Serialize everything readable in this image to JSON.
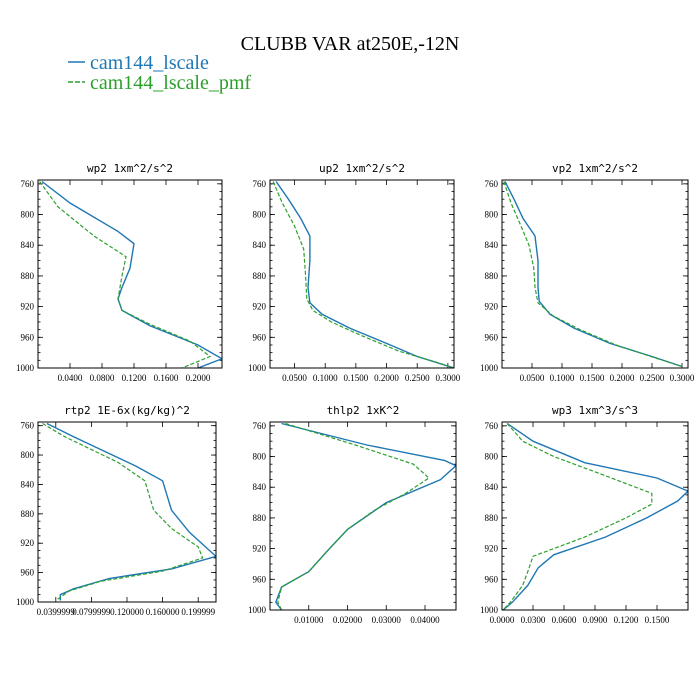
{
  "title": "CLUBB VAR at250E,-12N",
  "colors": {
    "cam144_lscale": "#1f77b4",
    "cam144_lscale_pmf": "#2ca02c"
  },
  "legend": [
    {
      "name": "cam144_lscale",
      "color": "#1f77b4",
      "dash": "solid"
    },
    {
      "name": "cam144_lscale_pmf",
      "color": "#2ca02c",
      "dash": "dashed"
    }
  ],
  "chart_data": [
    {
      "type": "line",
      "title": "wp2  1xm^2/s^2",
      "ylim": [
        1000,
        755
      ],
      "xlim": [
        0,
        0.23
      ],
      "yticks": [
        "760",
        "800",
        "840",
        "880",
        "920",
        "960",
        "1000"
      ],
      "xticks": [
        "0.0400",
        "0.0800",
        "0.1200",
        "0.1600",
        "0.2000"
      ],
      "series": [
        {
          "name": "cam144_lscale",
          "points": [
            [
              0.005,
              757
            ],
            [
              0.04,
              785
            ],
            [
              0.1,
              822
            ],
            [
              0.12,
              838
            ],
            [
              0.115,
              870
            ],
            [
              0.105,
              895
            ],
            [
              0.1,
              910
            ],
            [
              0.105,
              925
            ],
            [
              0.14,
              945
            ],
            [
              0.2,
              970
            ],
            [
              0.23,
              988
            ],
            [
              0.2,
              1000
            ]
          ]
        },
        {
          "name": "cam144_lscale_pmf",
          "points": [
            [
              0.002,
              757
            ],
            [
              0.025,
              790
            ],
            [
              0.07,
              828
            ],
            [
              0.11,
              855
            ],
            [
              0.105,
              880
            ],
            [
              0.1,
              910
            ],
            [
              0.105,
              925
            ],
            [
              0.14,
              943
            ],
            [
              0.19,
              965
            ],
            [
              0.215,
              985
            ],
            [
              0.18,
              1000
            ]
          ]
        }
      ]
    },
    {
      "type": "line",
      "title": "up2  1xm^2/s^2",
      "ylim": [
        1000,
        755
      ],
      "xlim": [
        0.01,
        0.31
      ],
      "yticks": [
        "760",
        "800",
        "840",
        "880",
        "920",
        "960",
        "1000"
      ],
      "xticks": [
        "0.0500",
        "0.1000",
        "0.1500",
        "0.2000",
        "0.2500",
        "0.3000"
      ],
      "series": [
        {
          "name": "cam144_lscale",
          "points": [
            [
              0.02,
              757
            ],
            [
              0.04,
              780
            ],
            [
              0.06,
              805
            ],
            [
              0.075,
              828
            ],
            [
              0.075,
              860
            ],
            [
              0.072,
              895
            ],
            [
              0.075,
              915
            ],
            [
              0.095,
              930
            ],
            [
              0.14,
              948
            ],
            [
              0.2,
              968
            ],
            [
              0.25,
              985
            ],
            [
              0.31,
              1000
            ]
          ]
        },
        {
          "name": "cam144_lscale_pmf",
          "points": [
            [
              0.015,
              757
            ],
            [
              0.03,
              785
            ],
            [
              0.05,
              815
            ],
            [
              0.065,
              845
            ],
            [
              0.068,
              880
            ],
            [
              0.07,
              910
            ],
            [
              0.08,
              925
            ],
            [
              0.11,
              940
            ],
            [
              0.16,
              958
            ],
            [
              0.22,
              978
            ],
            [
              0.28,
              992
            ],
            [
              0.31,
              1000
            ]
          ]
        }
      ]
    },
    {
      "type": "line",
      "title": "vp2  1xm^2/s^2",
      "ylim": [
        1000,
        755
      ],
      "xlim": [
        0.0,
        0.31
      ],
      "yticks": [
        "760",
        "800",
        "840",
        "880",
        "920",
        "960",
        "1000"
      ],
      "xticks": [
        "0.0500",
        "0.1000",
        "0.1500",
        "0.2000",
        "0.2500",
        "0.3000"
      ],
      "series": [
        {
          "name": "cam144_lscale",
          "points": [
            [
              0.005,
              757
            ],
            [
              0.02,
              780
            ],
            [
              0.035,
              805
            ],
            [
              0.055,
              828
            ],
            [
              0.06,
              860
            ],
            [
              0.06,
              895
            ],
            [
              0.062,
              913
            ],
            [
              0.08,
              930
            ],
            [
              0.12,
              948
            ],
            [
              0.18,
              968
            ],
            [
              0.25,
              985
            ],
            [
              0.3,
              998
            ]
          ]
        },
        {
          "name": "cam144_lscale_pmf",
          "points": [
            [
              0.003,
              757
            ],
            [
              0.015,
              785
            ],
            [
              0.03,
              812
            ],
            [
              0.045,
              840
            ],
            [
              0.053,
              870
            ],
            [
              0.055,
              895
            ],
            [
              0.06,
              915
            ],
            [
              0.085,
              932
            ],
            [
              0.13,
              950
            ],
            [
              0.19,
              970
            ],
            [
              0.26,
              988
            ],
            [
              0.3,
              998
            ]
          ]
        }
      ]
    },
    {
      "type": "line",
      "title": "rtp2  1E-6x(kg/kg)^2",
      "ylim": [
        1000,
        755
      ],
      "xlim": [
        0.02,
        0.22
      ],
      "yticks": [
        "760",
        "800",
        "840",
        "880",
        "920",
        "960",
        "1000"
      ],
      "xticks": [
        "0.0399999",
        "0.0799999",
        "0.120000",
        "0.160000",
        "0.199999"
      ],
      "series": [
        {
          "name": "cam144_lscale",
          "points": [
            [
              0.03,
              757
            ],
            [
              0.06,
              775
            ],
            [
              0.13,
              815
            ],
            [
              0.16,
              835
            ],
            [
              0.17,
              875
            ],
            [
              0.19,
              905
            ],
            [
              0.22,
              938
            ],
            [
              0.17,
              955
            ],
            [
              0.1,
              968
            ],
            [
              0.06,
              982
            ],
            [
              0.045,
              990
            ],
            [
              0.045,
              998
            ]
          ]
        },
        {
          "name": "cam144_lscale_pmf",
          "points": [
            [
              0.025,
              757
            ],
            [
              0.05,
              775
            ],
            [
              0.11,
              810
            ],
            [
              0.14,
              835
            ],
            [
              0.15,
              875
            ],
            [
              0.17,
              900
            ],
            [
              0.2,
              925
            ],
            [
              0.205,
              940
            ],
            [
              0.16,
              958
            ],
            [
              0.09,
              972
            ],
            [
              0.055,
              985
            ],
            [
              0.04,
              998
            ]
          ]
        }
      ]
    },
    {
      "type": "line",
      "title": "thlp2  1xK^2",
      "ylim": [
        1000,
        755
      ],
      "xlim": [
        0.0,
        0.048
      ],
      "yticks": [
        "760",
        "800",
        "840",
        "880",
        "920",
        "960",
        "1000"
      ],
      "xticks": [
        "0.01000",
        "0.02000",
        "0.03000",
        "0.04000"
      ],
      "series": [
        {
          "name": "cam144_lscale",
          "points": [
            [
              0.003,
              757
            ],
            [
              0.025,
              785
            ],
            [
              0.045,
              805
            ],
            [
              0.048,
              812
            ],
            [
              0.044,
              830
            ],
            [
              0.03,
              860
            ],
            [
              0.02,
              895
            ],
            [
              0.015,
              922
            ],
            [
              0.01,
              950
            ],
            [
              0.003,
              970
            ],
            [
              0.0015,
              990
            ],
            [
              0.003,
              1000
            ]
          ]
        },
        {
          "name": "cam144_lscale_pmf",
          "points": [
            [
              0.004,
              757
            ],
            [
              0.022,
              785
            ],
            [
              0.037,
              810
            ],
            [
              0.041,
              828
            ],
            [
              0.035,
              848
            ],
            [
              0.027,
              870
            ],
            [
              0.02,
              895
            ],
            [
              0.015,
              922
            ],
            [
              0.01,
              950
            ],
            [
              0.003,
              970
            ],
            [
              0.002,
              990
            ],
            [
              0.003,
              1000
            ]
          ]
        }
      ]
    },
    {
      "type": "line",
      "title": "wp3  1xm^3/s^3",
      "ylim": [
        1000,
        755
      ],
      "xlim": [
        0.0,
        0.18
      ],
      "yticks": [
        "760",
        "800",
        "840",
        "880",
        "920",
        "960",
        "1000"
      ],
      "xticks": [
        "0.0000",
        "0.0300",
        "0.0600",
        "0.0900",
        "0.1200",
        "0.1500"
      ],
      "series": [
        {
          "name": "cam144_lscale",
          "points": [
            [
              0.005,
              757
            ],
            [
              0.03,
              780
            ],
            [
              0.08,
              808
            ],
            [
              0.15,
              828
            ],
            [
              0.18,
              845
            ],
            [
              0.17,
              858
            ],
            [
              0.14,
              880
            ],
            [
              0.1,
              905
            ],
            [
              0.05,
              928
            ],
            [
              0.035,
              945
            ],
            [
              0.025,
              968
            ],
            [
              0.01,
              990
            ],
            [
              0.001,
              1000
            ]
          ]
        },
        {
          "name": "cam144_lscale_pmf",
          "points": [
            [
              0.005,
              757
            ],
            [
              0.02,
              780
            ],
            [
              0.05,
              800
            ],
            [
              0.1,
              825
            ],
            [
              0.145,
              848
            ],
            [
              0.145,
              862
            ],
            [
              0.12,
              880
            ],
            [
              0.08,
              905
            ],
            [
              0.03,
              930
            ],
            [
              0.025,
              950
            ],
            [
              0.02,
              968
            ],
            [
              0.008,
              990
            ],
            [
              0.001,
              1000
            ]
          ]
        }
      ]
    }
  ]
}
